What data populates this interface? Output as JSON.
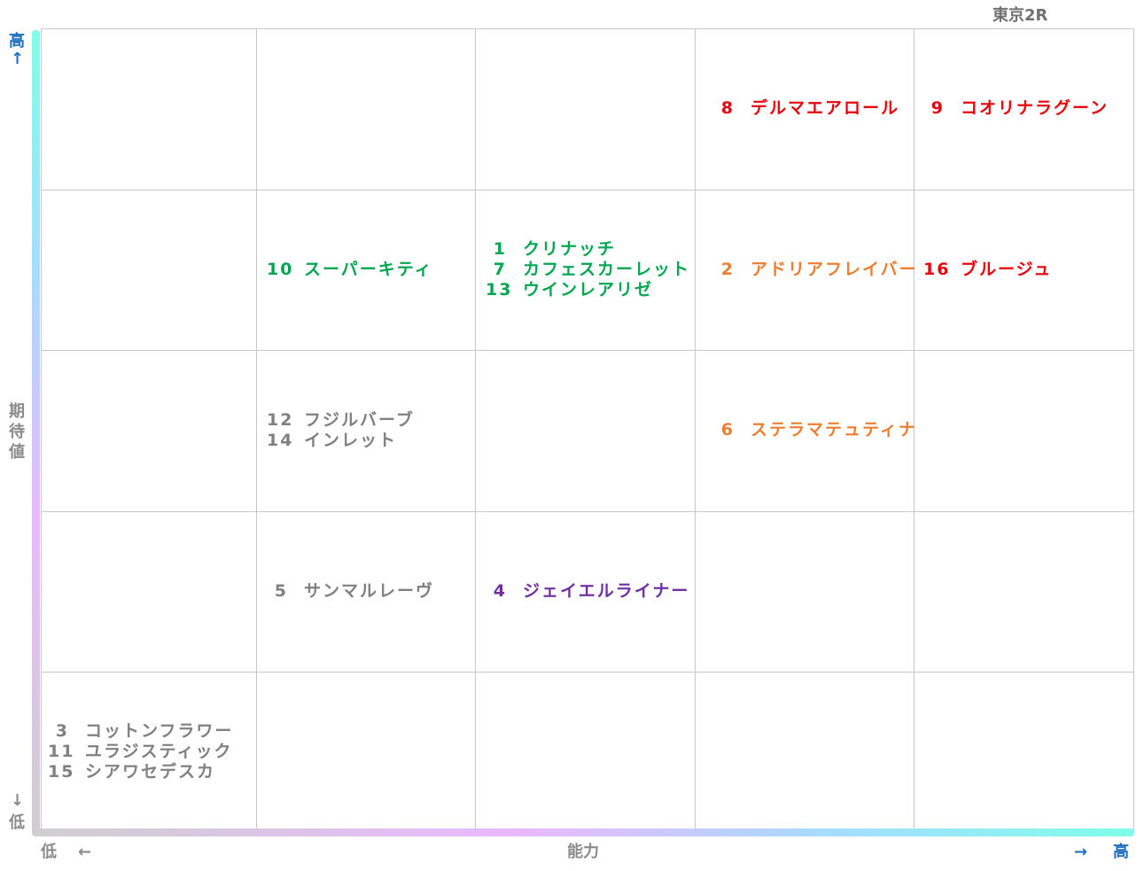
{
  "chart_data": {
    "type": "table",
    "title": "東京2R",
    "xlabel": "能力",
    "ylabel": "期待値",
    "x_low": "低",
    "x_high": "高",
    "y_low": "低",
    "y_high": "高",
    "columns": 5,
    "rows": 5,
    "cells": [
      {
        "col": 4,
        "row": 1,
        "color": "#e8000b",
        "entries": [
          {
            "num": "8",
            "name": "デルマエアロール"
          }
        ]
      },
      {
        "col": 5,
        "row": 1,
        "color": "#e8000b",
        "entries": [
          {
            "num": "9",
            "name": "コオリナラグーン"
          }
        ]
      },
      {
        "col": 2,
        "row": 2,
        "color": "#00a650",
        "entries": [
          {
            "num": "10",
            "name": "スーパーキティ"
          }
        ]
      },
      {
        "col": 3,
        "row": 2,
        "color": "#00a650",
        "entries": [
          {
            "num": "1",
            "name": "クリナッチ"
          },
          {
            "num": "7",
            "name": "カフェスカーレット"
          },
          {
            "num": "13",
            "name": "ウインレアリゼ"
          }
        ]
      },
      {
        "col": 4,
        "row": 2,
        "color": "#ed7d31",
        "entries": [
          {
            "num": "2",
            "name": "アドリアフレイバー"
          }
        ]
      },
      {
        "col": 5,
        "row": 2,
        "color": "#e8000b",
        "entries": [
          {
            "num": "16",
            "name": "ブルージュ"
          }
        ]
      },
      {
        "col": 2,
        "row": 3,
        "color": "#808080",
        "entries": [
          {
            "num": "12",
            "name": "フジルバーブ"
          },
          {
            "num": "14",
            "name": "インレット"
          }
        ]
      },
      {
        "col": 4,
        "row": 3,
        "color": "#ed7d31",
        "entries": [
          {
            "num": "6",
            "name": "ステラマテュティナ"
          }
        ]
      },
      {
        "col": 2,
        "row": 4,
        "color": "#808080",
        "entries": [
          {
            "num": "5",
            "name": "サンマルレーヴ"
          }
        ]
      },
      {
        "col": 3,
        "row": 4,
        "color": "#7030a0",
        "entries": [
          {
            "num": "4",
            "name": "ジェイエルライナー"
          }
        ]
      },
      {
        "col": 1,
        "row": 5,
        "color": "#808080",
        "entries": [
          {
            "num": "3",
            "name": "コットンフラワー"
          },
          {
            "num": "11",
            "name": "ユラジスティック"
          },
          {
            "num": "15",
            "name": "シアワセデスカ"
          }
        ]
      }
    ]
  },
  "axis_labels": {
    "y_high": "高",
    "y_low": "低",
    "y_title": [
      "期",
      "待",
      "値"
    ],
    "x_low": "低",
    "x_title": "能力",
    "x_high": "高",
    "up_arrow": "↑",
    "down_arrow": "↓",
    "left_arrow": "←",
    "right_arrow": "→"
  },
  "colors": {
    "blue_label": "#1f6fc0",
    "gray_label": "#8a8a8a",
    "title": "#707070"
  }
}
